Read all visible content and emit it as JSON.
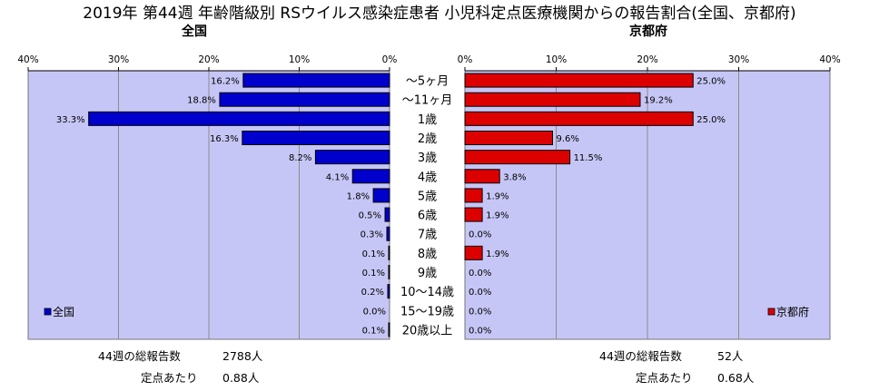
{
  "title": "2019年 第44週 年齢階級別 RSウイルス感染症患者 小児科定点医療機関からの報告割合(全国、京都府)",
  "colors": {
    "national": "#0000cc",
    "kyoto": "#dd0000",
    "plot_bg": "#c6c6f6",
    "grid": "#8c8c8c"
  },
  "chart_data": [
    {
      "type": "bar",
      "subtitle": "全国",
      "orientation": "horizontal",
      "direction": "right-to-left",
      "xlim": [
        0,
        40
      ],
      "ticks": [
        "40%",
        "30%",
        "20%",
        "10%",
        "0%"
      ],
      "grid": true,
      "legend": {
        "label": "全国",
        "position": "bottom-left"
      },
      "categories": [
        "～5ヶ月",
        "～11ヶ月",
        "1歳",
        "2歳",
        "3歳",
        "4歳",
        "5歳",
        "6歳",
        "7歳",
        "8歳",
        "9歳",
        "10～14歳",
        "15～19歳",
        "20歳以上"
      ],
      "values": [
        16.2,
        18.8,
        33.3,
        16.3,
        8.2,
        4.1,
        1.8,
        0.5,
        0.3,
        0.1,
        0.1,
        0.2,
        0.0,
        0.1
      ],
      "value_labels": [
        "16.2%",
        "18.8%",
        "33.3%",
        "16.3%",
        "8.2%",
        "4.1%",
        "1.8%",
        "0.5%",
        "0.3%",
        "0.1%",
        "0.1%",
        "0.2%",
        "0.0%",
        "0.1%"
      ]
    },
    {
      "type": "bar",
      "subtitle": "京都府",
      "orientation": "horizontal",
      "direction": "left-to-right",
      "xlim": [
        0,
        40
      ],
      "ticks": [
        "0%",
        "10%",
        "20%",
        "30%",
        "40%"
      ],
      "grid": true,
      "legend": {
        "label": "京都府",
        "position": "bottom-right"
      },
      "categories": [
        "～5ヶ月",
        "～11ヶ月",
        "1歳",
        "2歳",
        "3歳",
        "4歳",
        "5歳",
        "6歳",
        "7歳",
        "8歳",
        "9歳",
        "10～14歳",
        "15～19歳",
        "20歳以上"
      ],
      "values": [
        25.0,
        19.2,
        25.0,
        9.6,
        11.5,
        3.8,
        1.9,
        1.9,
        0.0,
        1.9,
        0.0,
        0.0,
        0.0,
        0.0
      ],
      "value_labels": [
        "25.0%",
        "19.2%",
        "25.0%",
        "9.6%",
        "11.5%",
        "3.8%",
        "1.9%",
        "1.9%",
        "0.0%",
        "1.9%",
        "0.0%",
        "0.0%",
        "0.0%",
        "0.0%"
      ]
    }
  ],
  "footer": {
    "national": {
      "total_label": "44週の総報告数",
      "total_value": "2788人",
      "per_label": "定点あたり",
      "per_value": "0.88人"
    },
    "kyoto": {
      "total_label": "44週の総報告数",
      "total_value": "52人",
      "per_label": "定点あたり",
      "per_value": "0.68人"
    }
  }
}
